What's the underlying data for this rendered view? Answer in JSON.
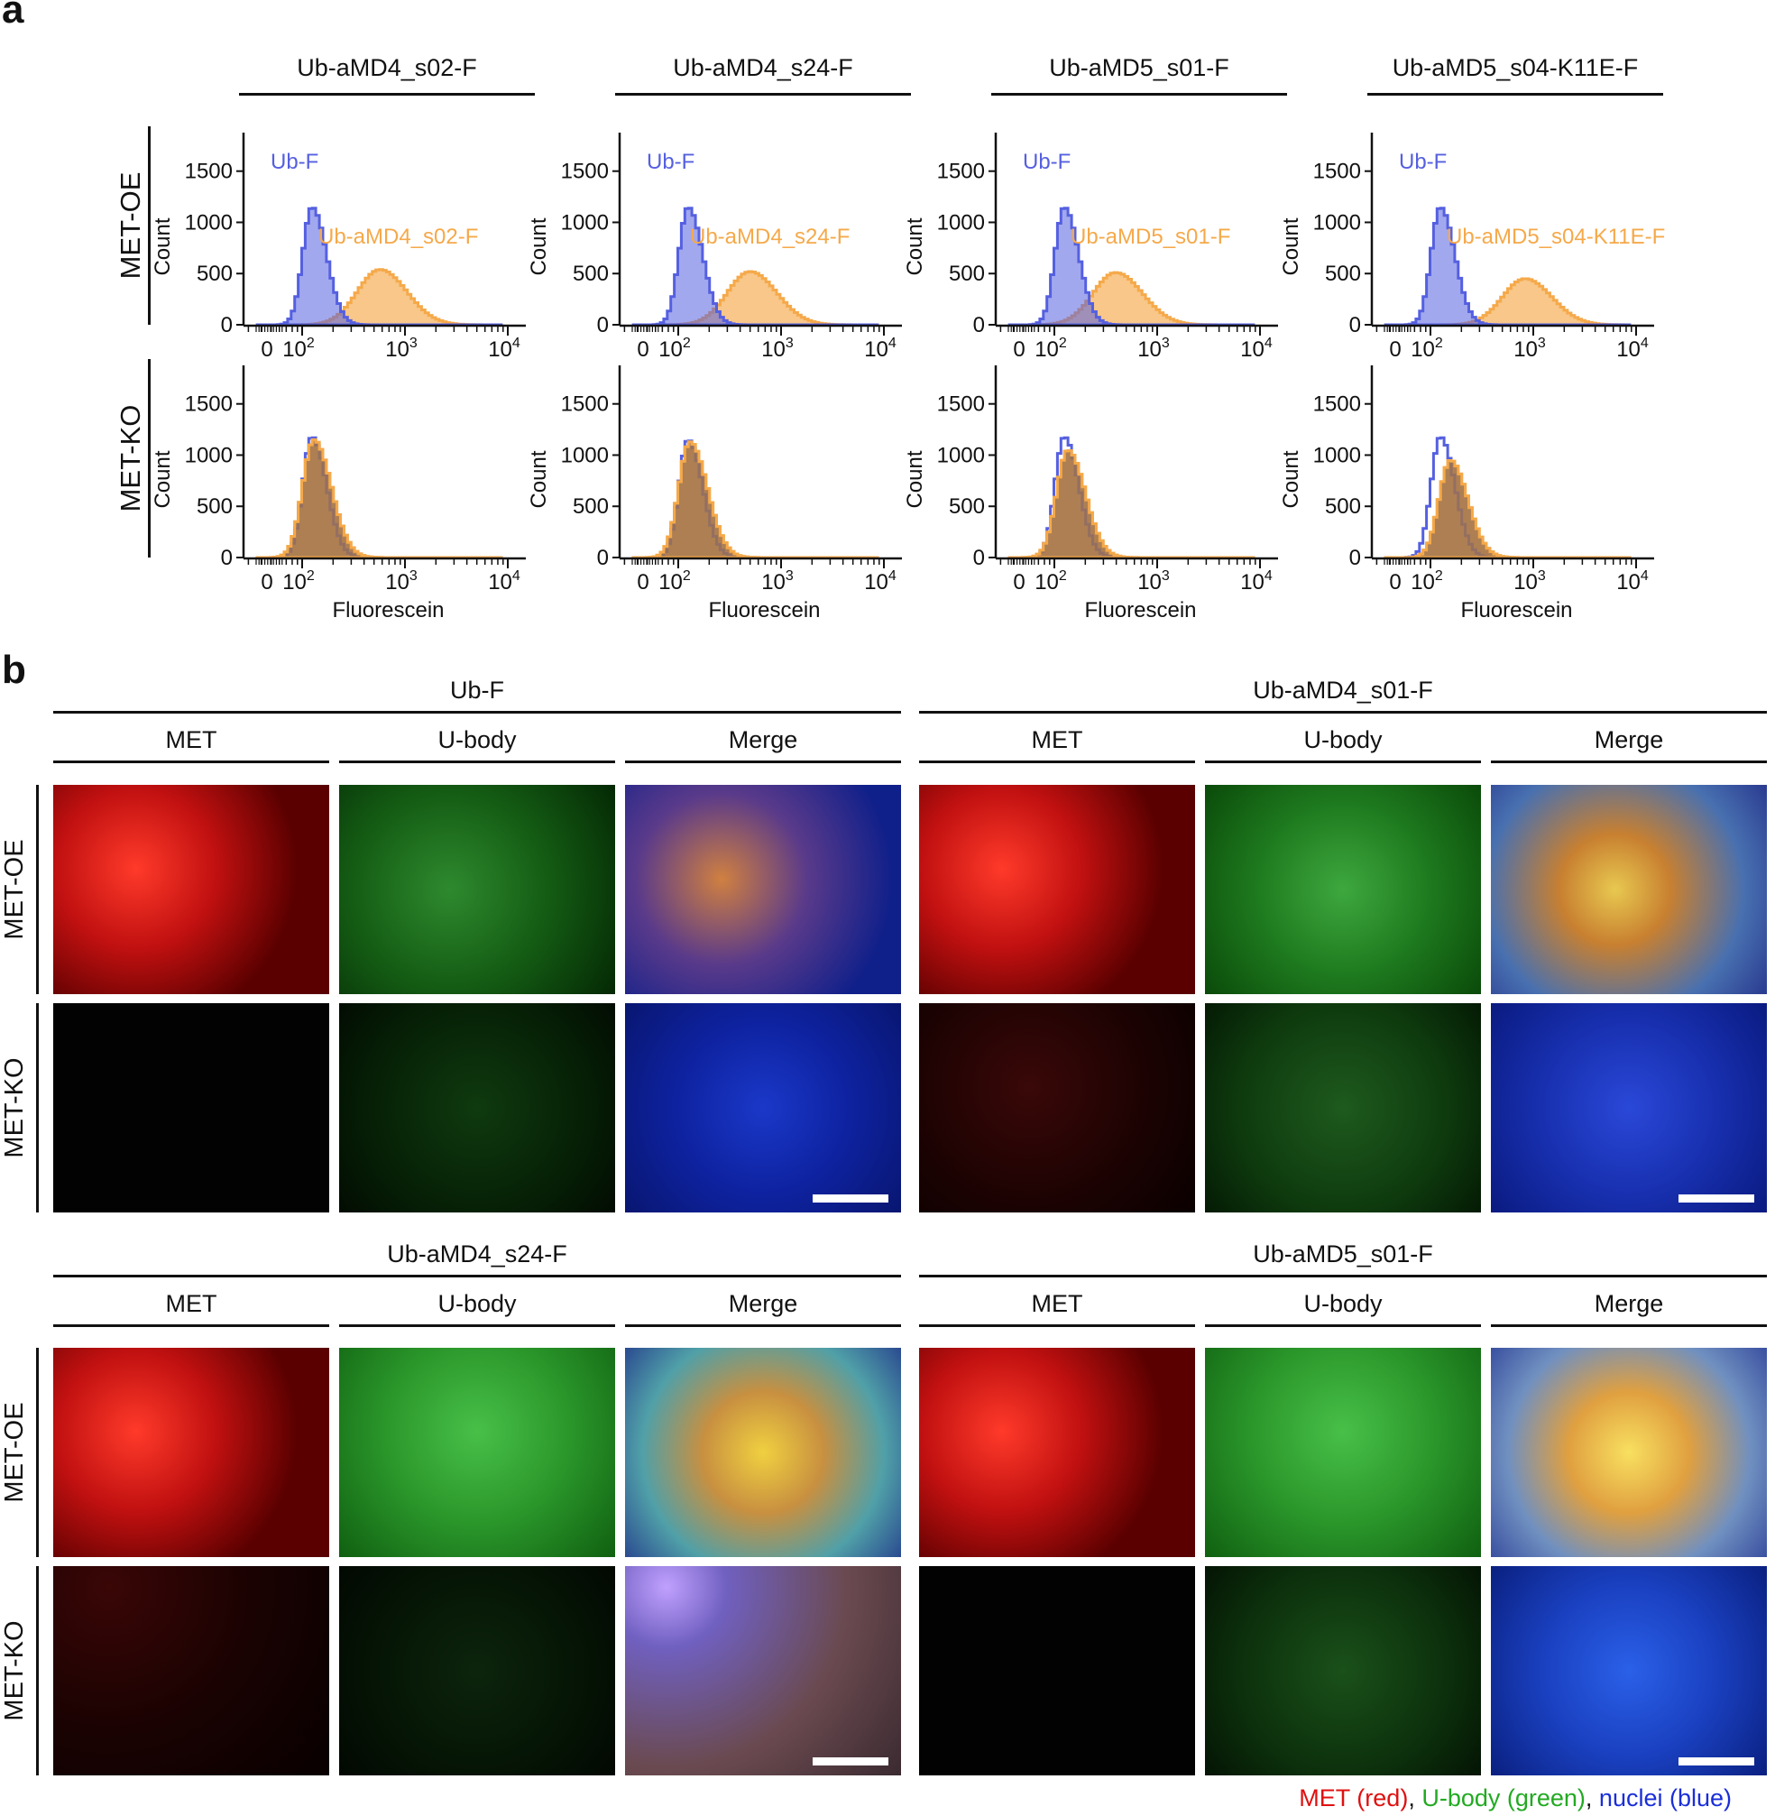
{
  "panel_a": {
    "letter": "a",
    "columns": [
      "Ub-aMD4_s02-F",
      "Ub-aMD4_s24-F",
      "Ub-aMD5_s01-F",
      "Ub-aMD5_s04-K11E-F"
    ],
    "rows": [
      "MET-OE",
      "MET-KO"
    ],
    "y_label": "Count",
    "x_label": "Fluorescein",
    "control_label": "Ub-F",
    "control_color": "#5560e0",
    "sample_color": "#f5a94a"
  },
  "panel_b": {
    "letter": "b",
    "groups": [
      {
        "title": "Ub-F",
        "subs": [
          "MET",
          "U-body",
          "Merge"
        ]
      },
      {
        "title": "Ub-aMD4_s01-F",
        "subs": [
          "MET",
          "U-body",
          "Merge"
        ]
      },
      {
        "title": "Ub-aMD4_s24-F",
        "subs": [
          "MET",
          "U-body",
          "Merge"
        ]
      },
      {
        "title": "Ub-aMD5_s01-F",
        "subs": [
          "MET",
          "U-body",
          "Merge"
        ]
      }
    ],
    "rows": [
      "MET-OE",
      "MET-KO"
    ],
    "legend": {
      "met": "MET (red)",
      "sep1": ", ",
      "ubody": "U-body (green)",
      "sep2": ", ",
      "nuclei": "nuclei (blue)",
      "met_color": "#e01010",
      "ubody_color": "#22aa22",
      "nuclei_color": "#1a2ed8"
    }
  },
  "chart_data": [
    {
      "type": "area",
      "title": "Ub-aMD4_s02-F",
      "row": "MET-OE",
      "xlabel": "",
      "ylabel": "Count",
      "x_scale": "log",
      "ylim": [
        0,
        1700
      ],
      "y_ticks": [
        0,
        500,
        1000,
        1500
      ],
      "x_ticks": [
        "0",
        "10^2",
        "10^3",
        "10^4"
      ],
      "series": [
        {
          "name": "Ub-F",
          "peak_x": 120,
          "peak_count": 1150
        },
        {
          "name": "Ub-aMD4_s02-F",
          "peak_x": 550,
          "peak_count": 540
        }
      ]
    },
    {
      "type": "area",
      "title": "Ub-aMD4_s24-F",
      "row": "MET-OE",
      "xlabel": "",
      "ylabel": "Count",
      "x_scale": "log",
      "ylim": [
        0,
        1700
      ],
      "y_ticks": [
        0,
        500,
        1000,
        1500
      ],
      "x_ticks": [
        "0",
        "10^2",
        "10^3",
        "10^4"
      ],
      "series": [
        {
          "name": "Ub-F",
          "peak_x": 120,
          "peak_count": 1150
        },
        {
          "name": "Ub-aMD4_s24-F",
          "peak_x": 480,
          "peak_count": 520
        }
      ]
    },
    {
      "type": "area",
      "title": "Ub-aMD5_s01-F",
      "row": "MET-OE",
      "xlabel": "",
      "ylabel": "Count",
      "x_scale": "log",
      "ylim": [
        0,
        1700
      ],
      "y_ticks": [
        0,
        500,
        1000,
        1500
      ],
      "x_ticks": [
        "0",
        "10^2",
        "10^3",
        "10^4"
      ],
      "series": [
        {
          "name": "Ub-F",
          "peak_x": 120,
          "peak_count": 1150
        },
        {
          "name": "Ub-aMD5_s01-F",
          "peak_x": 380,
          "peak_count": 510
        }
      ]
    },
    {
      "type": "area",
      "title": "Ub-aMD5_s04-K11E-F",
      "row": "MET-OE",
      "xlabel": "",
      "ylabel": "Count",
      "x_scale": "log",
      "ylim": [
        0,
        1700
      ],
      "y_ticks": [
        0,
        500,
        1000,
        1500
      ],
      "x_ticks": [
        "0",
        "10^2",
        "10^3",
        "10^4"
      ],
      "series": [
        {
          "name": "Ub-F",
          "peak_x": 120,
          "peak_count": 1150
        },
        {
          "name": "Ub-aMD5_s04-K11E-F",
          "peak_x": 800,
          "peak_count": 450
        }
      ]
    },
    {
      "type": "area",
      "title": "Ub-aMD4_s02-F",
      "row": "MET-KO",
      "xlabel": "Fluorescein",
      "ylabel": "Count",
      "x_scale": "log",
      "ylim": [
        0,
        1700
      ],
      "y_ticks": [
        0,
        500,
        1000,
        1500
      ],
      "x_ticks": [
        "0",
        "10^2",
        "10^3",
        "10^4"
      ],
      "series": [
        {
          "name": "Ub-F",
          "peak_x": 120,
          "peak_count": 1180
        },
        {
          "name": "Ub-aMD4_s02-F",
          "peak_x": 125,
          "peak_count": 1150
        }
      ]
    },
    {
      "type": "area",
      "title": "Ub-aMD4_s24-F",
      "row": "MET-KO",
      "xlabel": "Fluorescein",
      "ylabel": "Count",
      "x_scale": "log",
      "ylim": [
        0,
        1700
      ],
      "y_ticks": [
        0,
        500,
        1000,
        1500
      ],
      "x_ticks": [
        "0",
        "10^2",
        "10^3",
        "10^4"
      ],
      "series": [
        {
          "name": "Ub-F",
          "peak_x": 120,
          "peak_count": 1150
        },
        {
          "name": "Ub-aMD4_s24-F",
          "peak_x": 125,
          "peak_count": 1130
        }
      ]
    },
    {
      "type": "area",
      "title": "Ub-aMD5_s01-F",
      "row": "MET-KO",
      "xlabel": "Fluorescein",
      "ylabel": "Count",
      "x_scale": "log",
      "ylim": [
        0,
        1700
      ],
      "y_ticks": [
        0,
        500,
        1000,
        1500
      ],
      "x_ticks": [
        "0",
        "10^2",
        "10^3",
        "10^4"
      ],
      "series": [
        {
          "name": "Ub-F",
          "peak_x": 120,
          "peak_count": 1180
        },
        {
          "name": "Ub-aMD5_s01-F",
          "peak_x": 130,
          "peak_count": 1050
        }
      ]
    },
    {
      "type": "area",
      "title": "Ub-aMD5_s04-K11E-F",
      "row": "MET-KO",
      "xlabel": "Fluorescein",
      "ylabel": "Count",
      "x_scale": "log",
      "ylim": [
        0,
        1700
      ],
      "y_ticks": [
        0,
        500,
        1000,
        1500
      ],
      "x_ticks": [
        "0",
        "10^2",
        "10^3",
        "10^4"
      ],
      "series": [
        {
          "name": "Ub-F",
          "peak_x": 120,
          "peak_count": 1180
        },
        {
          "name": "Ub-aMD5_s04-K11E-F",
          "peak_x": 150,
          "peak_count": 950
        }
      ]
    }
  ]
}
